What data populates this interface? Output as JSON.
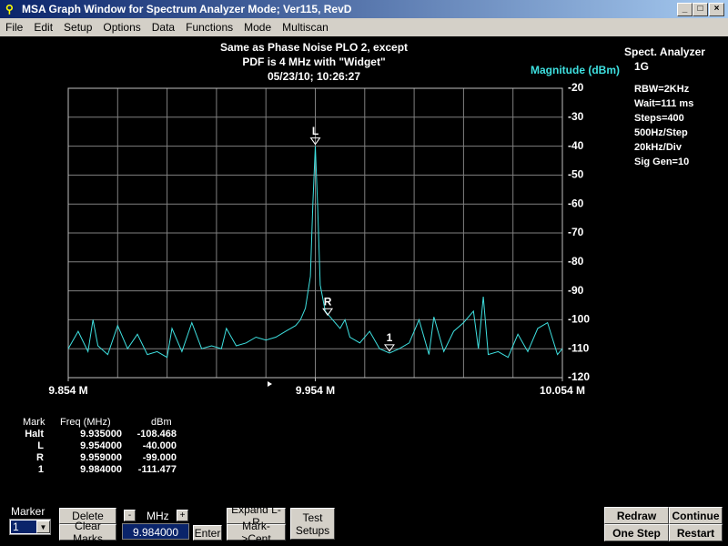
{
  "window": {
    "title": "MSA Graph Window for Spectrum Analyzer Mode; Ver115, RevD"
  },
  "menu": [
    "File",
    "Edit",
    "Setup",
    "Options",
    "Data",
    "Functions",
    "Mode",
    "Multiscan"
  ],
  "chart_data": {
    "type": "line",
    "title_lines": [
      "Same as Phase Noise PLO 2, except",
      "PDF is 4 MHz with \"Widget\"",
      "05/23/10; 10:26:27"
    ],
    "y_label": "Magnitude (dBm)",
    "x": [
      9.854,
      9.858,
      9.862,
      9.864,
      9.866,
      9.87,
      9.874,
      9.878,
      9.882,
      9.886,
      9.89,
      9.894,
      9.896,
      9.9,
      9.904,
      9.908,
      9.912,
      9.916,
      9.918,
      9.922,
      9.926,
      9.93,
      9.934,
      9.938,
      9.942,
      9.946,
      9.948,
      9.95,
      9.952,
      9.953,
      9.954,
      9.955,
      9.956,
      9.958,
      9.96,
      9.962,
      9.964,
      9.966,
      9.968,
      9.972,
      9.976,
      9.98,
      9.984,
      9.988,
      9.992,
      9.996,
      10.0,
      10.002,
      10.006,
      10.01,
      10.014,
      10.018,
      10.02,
      10.022,
      10.024,
      10.028,
      10.032,
      10.036,
      10.04,
      10.044,
      10.048,
      10.052,
      10.054
    ],
    "series": [
      {
        "color": "#3ee0e0",
        "values": [
          -110,
          -104,
          -111,
          -100,
          -109,
          -112,
          -102,
          -110,
          -105,
          -112,
          -111,
          -113,
          -103,
          -111,
          -101,
          -110,
          -109,
          -110,
          -103,
          -109,
          -108,
          -106,
          -107,
          -106,
          -104,
          -102,
          -100,
          -96,
          -85,
          -60,
          -40,
          -62,
          -88,
          -97,
          -99,
          -101,
          -103,
          -100,
          -106,
          -108,
          -104,
          -110,
          -111.5,
          -110,
          -108,
          -100,
          -112,
          -99,
          -111,
          -104,
          -101,
          -97,
          -110,
          -92,
          -112,
          -111,
          -113,
          -105,
          -111,
          -103,
          -101,
          -112,
          -110
        ]
      }
    ],
    "xlim": [
      9.854,
      10.054
    ],
    "ylim": [
      -120,
      -20
    ],
    "yticks": [
      -20,
      -30,
      -40,
      -50,
      -60,
      -70,
      -80,
      -90,
      -100,
      -110,
      -120
    ],
    "xticks": [
      {
        "value": 9.854,
        "label": "9.854 M"
      },
      {
        "value": 9.954,
        "label": "9.954 M"
      },
      {
        "value": 10.054,
        "label": "10.054 M"
      }
    ],
    "xgrid": [
      9.874,
      9.894,
      9.914,
      9.934,
      9.954,
      9.974,
      9.994,
      10.014,
      10.034
    ],
    "grid": true,
    "markers": [
      {
        "label": "L",
        "x": 9.954,
        "y": -40
      },
      {
        "label": "R",
        "x": 9.959,
        "y": -99
      },
      {
        "label": "1",
        "x": 9.984,
        "y": -111.477
      }
    ]
  },
  "info": {
    "heading": "Spect. Analyzer",
    "band": "1G",
    "lines": [
      "RBW=2KHz",
      "Wait=111 ms",
      "Steps=400",
      "500Hz/Step",
      "20kHz/Div",
      "Sig Gen=10"
    ]
  },
  "marker_table": {
    "headers": [
      "Mark",
      "Freq (MHz)",
      "dBm"
    ],
    "rows": [
      [
        "Halt",
        "9.935000",
        "-108.468"
      ],
      [
        "L",
        "9.954000",
        "-40.000"
      ],
      [
        "R",
        "9.959000",
        "-99.000"
      ],
      [
        "1",
        "9.984000",
        "-111.477"
      ]
    ]
  },
  "controls": {
    "marker_label": "Marker",
    "marker_select": "1",
    "delete": "Delete",
    "clear_marks": "Clear Marks",
    "minus": "-",
    "unit": "MHz",
    "plus": "+",
    "freq_input": "9.984000",
    "enter": "Enter",
    "expand": "Expand L-R",
    "mark_cent": "Mark->Cent",
    "test_setups": [
      "Test",
      "Setups"
    ],
    "redraw": "Redraw",
    "continue": "Continue",
    "one_step": "One Step",
    "restart": "Restart"
  }
}
